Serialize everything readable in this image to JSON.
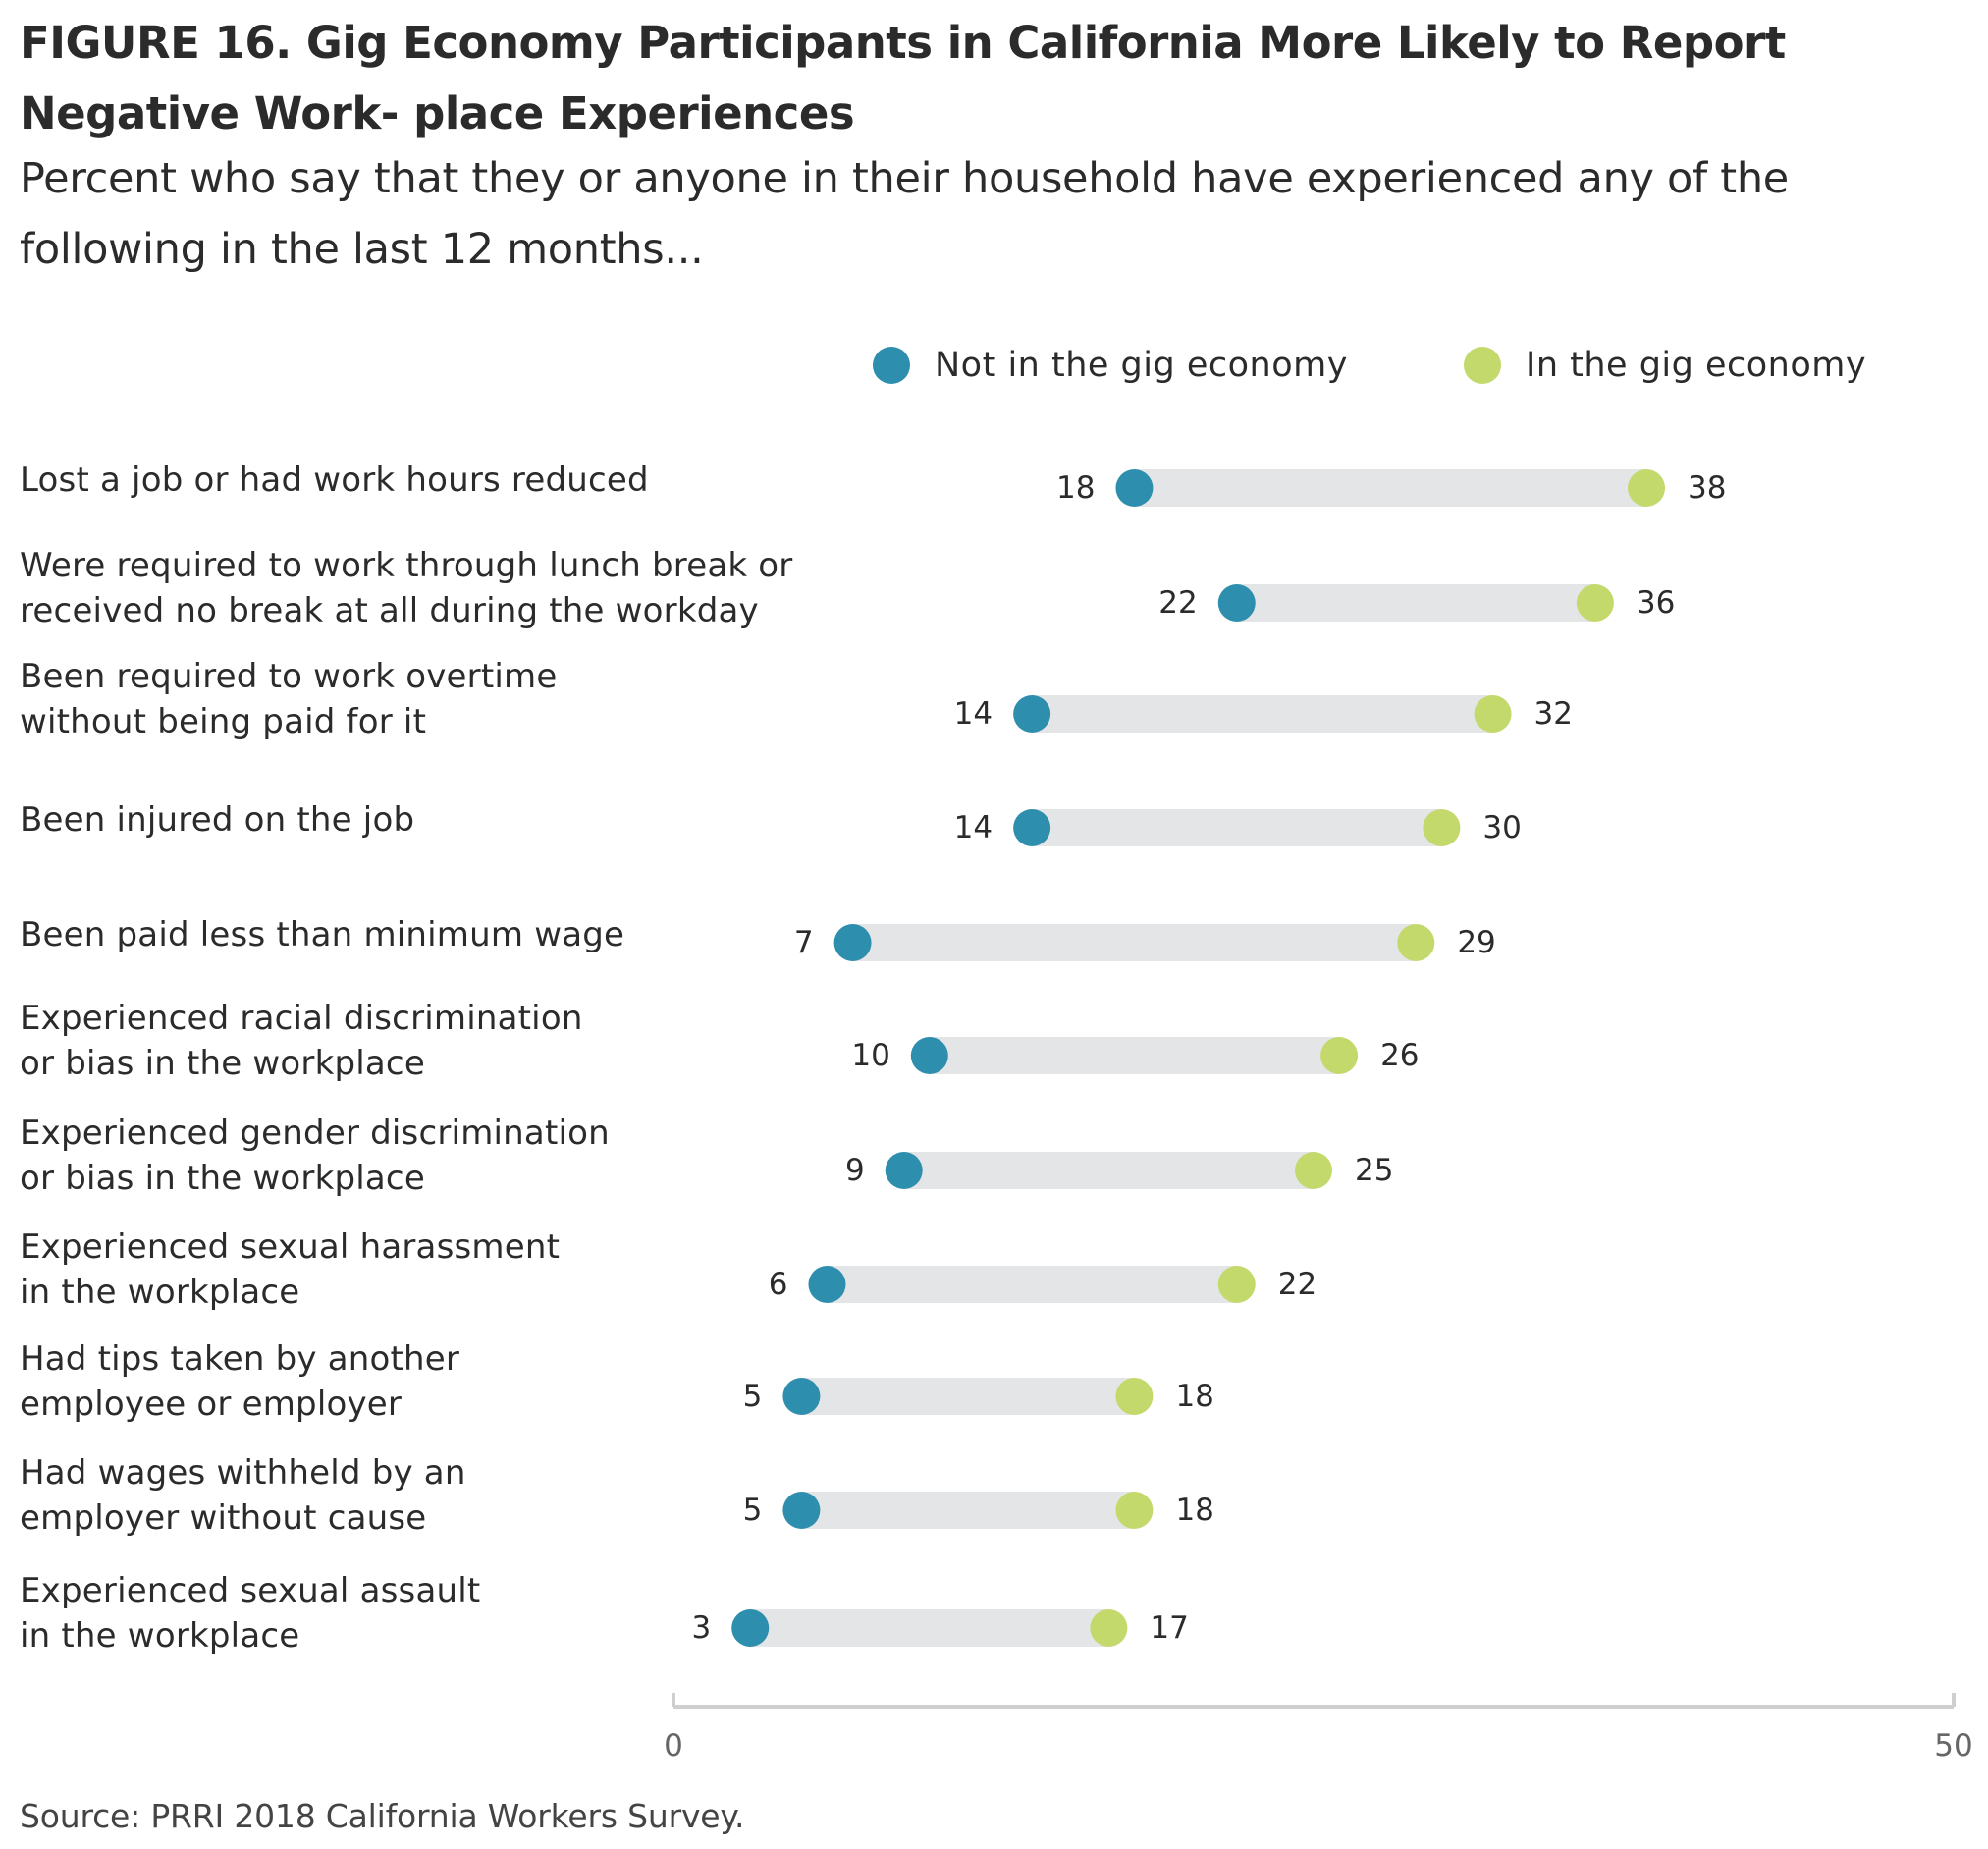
{
  "title": "FIGURE 16. Gig Economy Participants in California More Likely to Report Negative Work- place Experiences",
  "subtitle": "Percent who say that they or anyone in their household have experienced any of the following in the last 12 months...",
  "source": "Source: PRRI 2018 California Workers Survey.",
  "colors": {
    "not_gig": "#2e8eae",
    "gig": "#c4d96b",
    "track": "#e4e5e6",
    "axis": "#cfcfcf"
  },
  "chart_data": {
    "type": "dumbbell",
    "xlim": [
      0,
      50
    ],
    "x_ticks": [
      "0",
      "50"
    ],
    "legend": [
      {
        "name": "Not in the gig economy",
        "color": "#2e8eae"
      },
      {
        "name": "In the gig economy",
        "color": "#c4d96b"
      }
    ],
    "categories": [
      [
        "Lost a job or had work hours reduced"
      ],
      [
        "Were required to work through lunch break or",
        "received no break at all during the workday"
      ],
      [
        "Been required to work overtime",
        "without being paid for it"
      ],
      [
        "Been injured on the job"
      ],
      [
        "Been paid less than minimum wage"
      ],
      [
        "Experienced racial discrimination",
        "or bias in the workplace"
      ],
      [
        "Experienced gender discrimination",
        "or bias in the workplace"
      ],
      [
        "Experienced sexual harassment",
        "in the workplace"
      ],
      [
        "Had tips taken by another",
        "employee or employer"
      ],
      [
        "Had wages withheld by an",
        "employer without cause"
      ],
      [
        "Experienced sexual assault",
        "in the workplace"
      ]
    ],
    "series": [
      {
        "name": "Not in the gig economy",
        "values": [
          18,
          22,
          14,
          14,
          7,
          10,
          9,
          6,
          5,
          5,
          3
        ]
      },
      {
        "name": "In the gig economy",
        "values": [
          38,
          36,
          32,
          30,
          29,
          26,
          25,
          22,
          18,
          18,
          17
        ]
      }
    ]
  }
}
